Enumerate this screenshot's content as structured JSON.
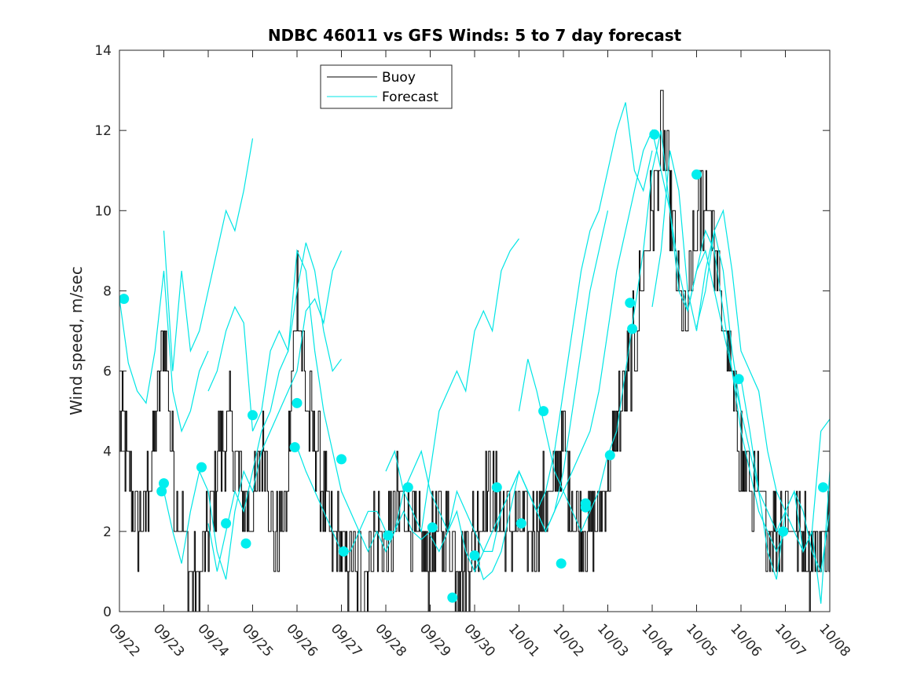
{
  "chart_data": {
    "type": "line",
    "title": "NDBC 46011 vs GFS Winds: 5 to 7 day forecast",
    "xlabel": "",
    "ylabel": "Wind speed, m/sec",
    "x_ticks": [
      "09/22",
      "09/23",
      "09/24",
      "09/25",
      "09/26",
      "09/27",
      "09/28",
      "09/29",
      "09/30",
      "10/01",
      "10/02",
      "10/03",
      "10/04",
      "10/05",
      "10/06",
      "10/07",
      "10/08"
    ],
    "xlim_days": [
      0,
      16
    ],
    "ylim": [
      0,
      14
    ],
    "y_ticks": [
      0,
      2,
      4,
      6,
      8,
      10,
      12,
      14
    ],
    "legend": {
      "position": "top-left",
      "entries": [
        "Buoy",
        "Forecast"
      ]
    },
    "colors": {
      "buoy": "#000000",
      "forecast": "#00e5e5",
      "markers": "#00eeee"
    },
    "buoy_anchors": {
      "day": [
        0,
        0.25,
        0.5,
        0.75,
        1.0,
        1.25,
        1.5,
        1.75,
        2.0,
        2.25,
        2.5,
        2.75,
        3.0,
        3.25,
        3.5,
        3.75,
        4.0,
        4.25,
        4.5,
        4.75,
        5.0,
        5.25,
        5.5,
        5.75,
        6.0,
        6.25,
        6.5,
        6.75,
        7.0,
        7.25,
        7.5,
        7.75,
        8.0,
        8.25,
        8.5,
        8.75,
        9.0,
        9.25,
        9.5,
        9.75,
        10.0,
        10.25,
        10.5,
        10.75,
        11.0,
        11.25,
        11.5,
        11.75,
        12.0,
        12.25,
        12.5,
        12.75,
        13.0,
        13.25,
        13.5,
        13.75,
        14.0,
        14.25,
        14.5,
        14.75,
        15.0,
        15.25,
        15.5,
        15.75,
        16.0
      ],
      "speed": [
        5,
        3,
        2,
        4,
        7,
        3,
        1.5,
        0.5,
        2,
        4,
        4.5,
        3,
        2.5,
        4.5,
        1.5,
        2.5,
        8,
        5,
        3.5,
        2,
        1.5,
        1,
        1,
        2,
        1.5,
        2.5,
        2.5,
        1.5,
        1.5,
        2,
        1.5,
        1,
        2,
        3,
        2.5,
        2,
        2,
        2,
        2.5,
        3,
        4,
        2.5,
        2,
        2.5,
        3,
        5,
        6,
        8,
        10,
        12,
        9,
        7,
        9.5,
        10.5,
        8,
        6,
        4,
        3,
        2.5,
        2,
        2.5,
        2,
        1.5,
        1.5,
        2
      ]
    },
    "forecast_series": [
      {
        "name": "Forecast",
        "day": [
          0,
          0.2,
          0.4,
          0.6,
          0.8,
          1.0,
          1.2,
          1.4,
          1.6,
          1.8,
          2.0
        ],
        "speed": [
          7.8,
          6.2,
          5.5,
          5.2,
          6.5,
          8.5,
          5.5,
          4.5,
          5.0,
          6.0,
          6.5
        ]
      },
      {
        "name": "Forecast",
        "day": [
          1.0,
          1.2,
          1.4,
          1.6,
          1.8,
          2.0,
          2.2,
          2.4,
          2.6,
          2.8,
          3.0
        ],
        "speed": [
          9.5,
          6.0,
          8.5,
          6.5,
          7.0,
          8.0,
          9.0,
          10.0,
          9.5,
          10.5,
          11.8
        ]
      },
      {
        "name": "Forecast",
        "day": [
          1.0,
          1.2,
          1.4,
          1.6,
          1.8,
          2.0,
          2.2,
          2.4,
          2.6,
          2.8,
          3.0,
          3.2,
          3.4,
          3.6,
          3.8,
          4.0,
          4.2,
          4.4,
          4.6,
          4.8,
          5.0
        ],
        "speed": [
          3.0,
          2.0,
          1.2,
          2.5,
          3.5,
          3.0,
          1.5,
          0.8,
          2.5,
          3.5,
          3.0,
          4.0,
          4.5,
          5.0,
          5.5,
          6.0,
          7.5,
          7.8,
          7.2,
          8.5,
          9.0
        ]
      },
      {
        "name": "Forecast",
        "day": [
          2.0,
          2.2,
          2.4,
          2.6,
          2.8,
          3.0,
          3.2,
          3.4,
          3.6,
          3.8,
          4.0,
          4.2,
          4.4,
          4.6,
          4.8,
          5.0
        ],
        "speed": [
          5.5,
          6.0,
          7.0,
          7.6,
          7.2,
          4.5,
          5.0,
          6.5,
          7.0,
          6.5,
          8.0,
          9.2,
          8.5,
          7.0,
          6.0,
          6.3
        ]
      },
      {
        "name": "Forecast",
        "day": [
          2.0,
          2.2,
          2.4,
          2.6,
          2.8,
          3.0,
          3.2,
          3.4,
          3.6,
          3.8,
          4.0,
          4.2,
          4.4,
          4.6,
          4.8,
          5.0,
          5.2,
          5.4,
          5.6,
          5.8,
          6.0,
          6.2,
          6.4,
          6.6,
          6.8,
          7.0
        ],
        "speed": [
          2.2,
          1.0,
          2.0,
          3.0,
          2.5,
          3.5,
          4.5,
          5.0,
          6.0,
          6.5,
          9.0,
          8.5,
          6.5,
          5.0,
          4.0,
          3.0,
          2.5,
          2.0,
          1.5,
          2.0,
          1.5,
          2.0,
          2.5,
          2.0,
          1.8,
          2.0
        ]
      },
      {
        "name": "Forecast",
        "day": [
          4.0,
          4.2,
          4.4,
          4.6,
          4.8,
          5.0,
          5.2,
          5.4,
          5.6,
          5.8,
          6.0,
          6.2,
          6.4,
          6.6,
          6.8,
          7.0,
          7.2,
          7.4,
          7.6,
          7.8,
          8.0,
          8.2,
          8.4,
          8.6,
          8.8,
          9.0,
          9.2,
          9.4,
          9.6,
          9.8,
          10.0,
          10.2,
          10.4,
          10.6,
          10.8,
          11.0
        ],
        "speed": [
          4.1,
          3.5,
          3.0,
          2.5,
          2.0,
          1.5,
          1.5,
          2.0,
          2.5,
          2.5,
          2.0,
          2.0,
          3.0,
          3.5,
          4.0,
          3.0,
          2.5,
          2.0,
          3.0,
          2.5,
          2.0,
          1.5,
          1.5,
          2.5,
          3.0,
          3.5,
          3.0,
          2.5,
          2.0,
          2.5,
          3.5,
          5.0,
          6.5,
          8.0,
          9.0,
          10.0
        ]
      },
      {
        "name": "Forecast",
        "day": [
          6.0,
          6.2,
          6.4,
          6.6,
          6.8,
          7.0,
          7.2,
          7.4,
          7.6,
          7.8,
          8.0,
          8.2,
          8.4,
          8.6,
          8.8,
          9.0
        ],
        "speed": [
          3.5,
          4.0,
          3.0,
          2.5,
          2.0,
          3.5,
          5.0,
          5.5,
          6.0,
          5.5,
          7.0,
          7.5,
          7.0,
          8.5,
          9.0,
          9.3
        ]
      },
      {
        "name": "Forecast",
        "day": [
          7.0,
          7.2,
          7.4,
          7.6,
          7.8,
          8.0,
          8.2,
          8.4,
          8.6,
          8.8,
          9.0,
          9.2,
          9.4,
          9.6,
          9.8,
          10.0,
          10.2,
          10.4,
          10.6,
          10.8,
          11.0,
          11.2,
          11.4,
          11.6,
          11.8,
          12.0
        ],
        "speed": [
          1.9,
          1.5,
          2.0,
          2.5,
          1.5,
          1.0,
          1.5,
          2.0,
          2.5,
          3.0,
          3.5,
          3.0,
          2.5,
          3.0,
          4.0,
          5.5,
          7.0,
          8.5,
          9.5,
          10.0,
          11.0,
          12.0,
          12.7,
          11.0,
          10.5,
          11.5
        ]
      },
      {
        "name": "Forecast",
        "day": [
          8.0,
          8.2,
          8.4,
          8.6,
          8.8,
          9.0,
          9.2,
          9.4,
          9.6,
          9.8,
          10.0,
          10.2,
          10.4,
          10.6,
          10.8,
          11.0,
          11.2,
          11.4,
          11.6,
          11.8,
          12.0,
          12.2,
          12.4,
          12.6,
          12.8,
          13.0,
          13.2,
          13.4,
          13.6,
          13.8,
          14.0
        ],
        "speed": [
          1.5,
          0.8,
          1.0,
          1.5,
          2.5,
          3.5,
          3.0,
          2.5,
          2.0,
          2.5,
          3.0,
          3.5,
          4.0,
          4.5,
          5.5,
          7.0,
          8.5,
          9.5,
          10.5,
          11.5,
          12.0,
          11.0,
          10.0,
          8.0,
          7.5,
          8.5,
          9.0,
          8.0,
          7.0,
          6.0,
          5.0
        ]
      },
      {
        "name": "Forecast",
        "day": [
          9.0,
          9.2,
          9.4,
          9.6,
          9.8,
          10.0,
          10.2,
          10.4,
          10.6,
          10.8,
          11.0,
          11.2,
          11.4,
          11.6,
          11.8,
          12.0,
          12.2,
          12.4,
          12.6,
          12.8,
          13.0,
          13.2,
          13.4,
          13.6,
          13.8,
          14.0,
          14.2,
          14.4,
          14.6,
          14.8,
          15.0
        ],
        "speed": [
          5.0,
          6.3,
          5.5,
          4.5,
          3.5,
          3.0,
          2.5,
          2.0,
          2.5,
          3.0,
          3.9,
          4.5,
          6.0,
          7.5,
          9.0,
          11.0,
          12.0,
          10.0,
          8.5,
          7.5,
          8.5,
          9.5,
          9.0,
          7.5,
          6.0,
          4.5,
          3.5,
          2.5,
          2.0,
          1.5,
          2.0
        ]
      },
      {
        "name": "Forecast",
        "day": [
          12.0,
          12.2,
          12.4,
          12.6,
          12.8,
          13.0,
          13.2,
          13.4,
          13.6,
          13.8,
          14.0,
          14.2,
          14.4,
          14.6,
          14.8,
          15.0,
          15.2,
          15.4,
          15.6,
          15.8,
          16.0
        ],
        "speed": [
          7.6,
          9.0,
          11.5,
          10.5,
          8.0,
          7.0,
          8.5,
          9.5,
          8.5,
          6.5,
          5.0,
          4.0,
          3.0,
          2.5,
          2.0,
          2.5,
          3.0,
          2.5,
          1.5,
          1.0,
          2.5
        ]
      },
      {
        "name": "Forecast",
        "day": [
          13.0,
          13.2,
          13.4,
          13.6,
          13.8,
          14.0,
          14.2,
          14.4,
          14.6,
          14.8,
          15.0,
          15.2,
          15.4,
          15.6,
          15.8,
          16.0
        ],
        "speed": [
          7.1,
          8.0,
          9.5,
          10.0,
          8.5,
          6.5,
          6.0,
          5.5,
          4.0,
          3.0,
          2.5,
          2.0,
          1.5,
          2.0,
          4.5,
          4.8
        ]
      },
      {
        "name": "Forecast",
        "day": [
          14.0,
          14.2,
          14.4,
          14.6,
          14.8,
          15.0,
          15.2,
          15.4,
          15.6,
          15.8,
          16.0
        ],
        "speed": [
          5.8,
          4.5,
          3.0,
          1.5,
          0.8,
          2.5,
          3.0,
          1.5,
          2.0,
          0.2,
          3.5
        ]
      }
    ],
    "forecast_markers": {
      "day": [
        0.1,
        1.0,
        1.85,
        2.85,
        3.95,
        4.0,
        5.0,
        5.05,
        6.05,
        7.05,
        8.0,
        8.5,
        9.05,
        9.95,
        10.5,
        11.05,
        11.5,
        12.05,
        13.0,
        13.95,
        14.95,
        15.85,
        0.95,
        2.4,
        3.0,
        6.5,
        7.5,
        9.55,
        10.5,
        11.55
      ],
      "speed": [
        7.8,
        3.2,
        3.6,
        1.7,
        4.1,
        5.2,
        3.8,
        1.5,
        1.9,
        2.1,
        1.4,
        3.1,
        2.2,
        1.2,
        2.6,
        3.9,
        7.7,
        11.9,
        10.9,
        5.8,
        2.0,
        3.1,
        3.0,
        2.2,
        4.9,
        3.1,
        0.35,
        5.0,
        2.7,
        7.05
      ]
    }
  }
}
